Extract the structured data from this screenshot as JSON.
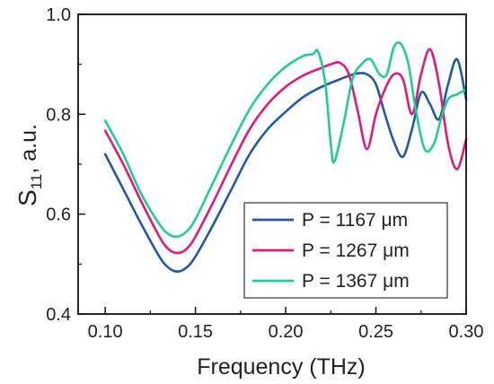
{
  "chart_data": {
    "type": "line",
    "xlabel": "Frequency (THz)",
    "ylabel_main": "S",
    "ylabel_sub": "11",
    "ylabel_rest": ", a.u.",
    "xlim": [
      0.085,
      0.3
    ],
    "ylim": [
      0.4,
      1.0
    ],
    "x_ticks": [
      "0.10",
      "0.15",
      "0.20",
      "0.25",
      "0.30"
    ],
    "y_ticks": [
      "0.4",
      "0.6",
      "0.8",
      "1.0"
    ],
    "grid": false,
    "legend_position": "bottom-right",
    "series": [
      {
        "name": "P = 1167 μm",
        "color": "#1f5aa6",
        "x": [
          0.1,
          0.11,
          0.12,
          0.13,
          0.135,
          0.14,
          0.145,
          0.15,
          0.16,
          0.17,
          0.18,
          0.19,
          0.2,
          0.21,
          0.22,
          0.23,
          0.235,
          0.24,
          0.245,
          0.25,
          0.255,
          0.26,
          0.265,
          0.27,
          0.275,
          0.28,
          0.285,
          0.29,
          0.295,
          0.3
        ],
        "y": [
          0.72,
          0.65,
          0.58,
          0.515,
          0.493,
          0.485,
          0.493,
          0.515,
          0.58,
          0.65,
          0.72,
          0.77,
          0.805,
          0.835,
          0.855,
          0.87,
          0.877,
          0.882,
          0.88,
          0.86,
          0.8,
          0.745,
          0.715,
          0.77,
          0.843,
          0.82,
          0.79,
          0.86,
          0.91,
          0.83
        ]
      },
      {
        "name": "P = 1267 μm",
        "color": "#e0197d",
        "x": [
          0.1,
          0.11,
          0.12,
          0.13,
          0.135,
          0.14,
          0.145,
          0.15,
          0.16,
          0.17,
          0.18,
          0.19,
          0.2,
          0.21,
          0.22,
          0.225,
          0.23,
          0.235,
          0.24,
          0.245,
          0.25,
          0.255,
          0.26,
          0.265,
          0.27,
          0.275,
          0.28,
          0.285,
          0.29,
          0.295,
          0.3
        ],
        "y": [
          0.767,
          0.7,
          0.625,
          0.555,
          0.53,
          0.522,
          0.53,
          0.555,
          0.625,
          0.7,
          0.77,
          0.82,
          0.855,
          0.878,
          0.893,
          0.9,
          0.903,
          0.88,
          0.805,
          0.73,
          0.8,
          0.85,
          0.88,
          0.87,
          0.8,
          0.88,
          0.93,
          0.86,
          0.74,
          0.69,
          0.75
        ]
      },
      {
        "name": "P = 1367 μm",
        "color": "#1fcf90",
        "x": [
          0.1,
          0.11,
          0.12,
          0.13,
          0.135,
          0.14,
          0.145,
          0.15,
          0.16,
          0.17,
          0.18,
          0.19,
          0.2,
          0.21,
          0.215,
          0.218,
          0.222,
          0.225,
          0.227,
          0.232,
          0.237,
          0.242,
          0.247,
          0.252,
          0.256,
          0.26,
          0.264,
          0.268,
          0.272,
          0.277,
          0.282,
          0.286,
          0.29,
          0.295,
          0.3
        ],
        "y": [
          0.787,
          0.72,
          0.64,
          0.58,
          0.56,
          0.555,
          0.565,
          0.59,
          0.665,
          0.74,
          0.81,
          0.86,
          0.895,
          0.917,
          0.92,
          0.925,
          0.86,
          0.74,
          0.705,
          0.78,
          0.87,
          0.9,
          0.91,
          0.88,
          0.88,
          0.935,
          0.94,
          0.9,
          0.81,
          0.73,
          0.74,
          0.79,
          0.83,
          0.84,
          0.85
        ]
      }
    ]
  }
}
